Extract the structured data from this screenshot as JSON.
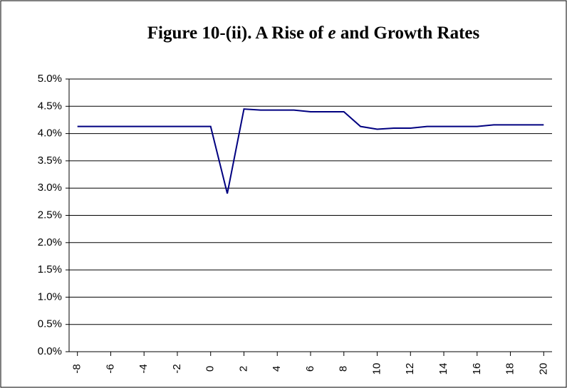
{
  "chart_data": {
    "type": "line",
    "title": [
      "Figure 10-(ii). A Rise of",
      "e",
      "and Growth Rates"
    ],
    "x": [
      -8,
      -7,
      -6,
      -5,
      -4,
      -3,
      -2,
      -1,
      0,
      1,
      2,
      3,
      4,
      5,
      6,
      7,
      8,
      9,
      10,
      11,
      12,
      13,
      14,
      15,
      16,
      17,
      18,
      19,
      20
    ],
    "series": [
      {
        "color": "#000080",
        "values": [
          4.13,
          4.13,
          4.13,
          4.13,
          4.13,
          4.13,
          4.13,
          4.13,
          4.13,
          2.9,
          4.45,
          4.43,
          4.43,
          4.43,
          4.4,
          4.4,
          4.4,
          4.13,
          4.08,
          4.1,
          4.1,
          4.13,
          4.13,
          4.13,
          4.13,
          4.16,
          4.16,
          4.16,
          4.16
        ]
      }
    ],
    "xlim": [
      -8.5,
      20.5
    ],
    "xticks": [
      -8,
      -6,
      -4,
      -2,
      0,
      2,
      4,
      6,
      8,
      10,
      12,
      14,
      16,
      18,
      20
    ],
    "ylim": [
      0,
      5
    ],
    "yticks": [
      {
        "value": 0,
        "label": "0.0%"
      },
      {
        "value": 0.5,
        "label": "0.5%"
      },
      {
        "value": 1,
        "label": "1.0%"
      },
      {
        "value": 1.5,
        "label": "1.5%"
      },
      {
        "value": 2,
        "label": "2.0%"
      },
      {
        "value": 2.5,
        "label": "2.5%"
      },
      {
        "value": 3,
        "label": "3.0%"
      },
      {
        "value": 3.5,
        "label": "3.5%"
      },
      {
        "value": 4,
        "label": "4.0%"
      },
      {
        "value": 4.5,
        "label": "4.5%"
      },
      {
        "value": 5,
        "label": "5.0%"
      }
    ],
    "grid": true
  }
}
